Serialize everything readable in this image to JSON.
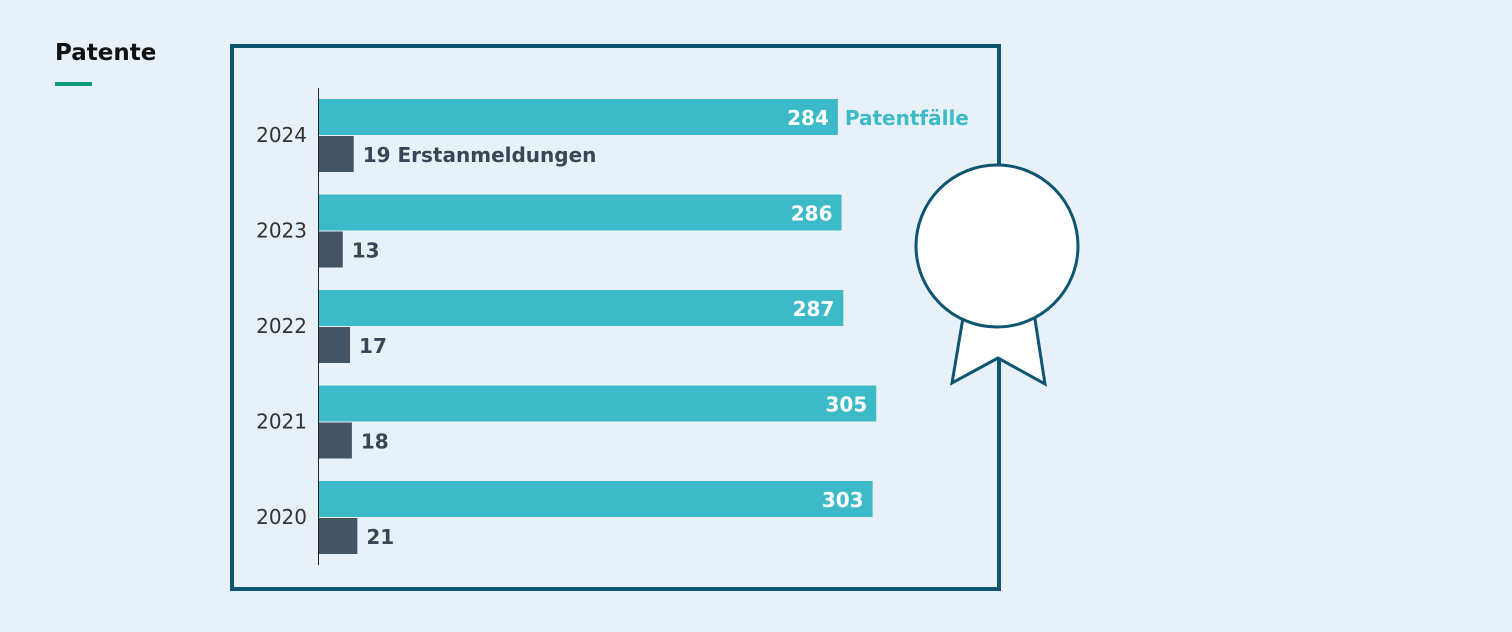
{
  "header": {
    "title": "Patente"
  },
  "colors": {
    "patent": "#3dbac8",
    "first": "#455465",
    "frame": "#0e5572",
    "accent": "#0e9b7b"
  },
  "chart_data": {
    "type": "bar",
    "orientation": "horizontal",
    "categories": [
      "2024",
      "2023",
      "2022",
      "2021",
      "2020"
    ],
    "series": [
      {
        "name": "Patentfälle",
        "values": [
          284,
          286,
          287,
          305,
          303
        ]
      },
      {
        "name": "Erstanmeldungen",
        "values": [
          19,
          13,
          17,
          18,
          21
        ]
      }
    ],
    "inline_labels": {
      "patent": "Patentfälle",
      "first": "Erstanmeldungen"
    },
    "legend": "inline",
    "grid": false
  }
}
